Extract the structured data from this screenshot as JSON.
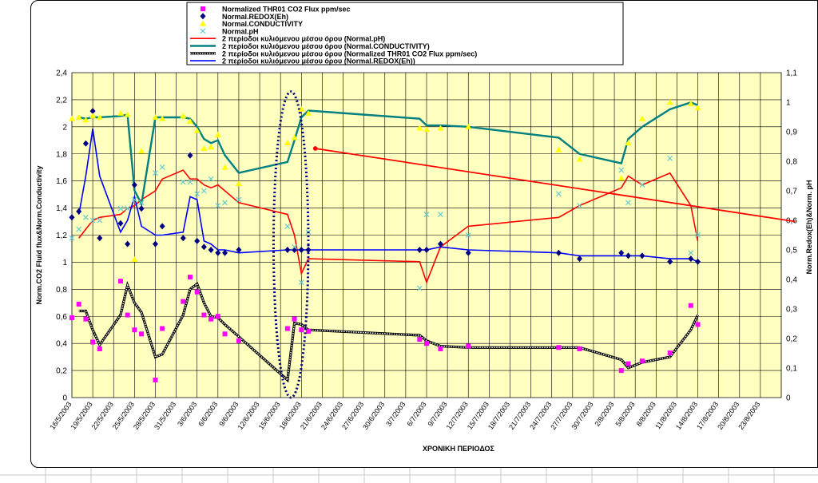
{
  "chart_data": {
    "type": "line",
    "title": "",
    "xlabel": "ΧΡΟΝΙΚΗ ΠΕΡΙΟΔΟΣ",
    "ylabel_left": "Norm.CO2 Fluid flux&Norm.Conductivity",
    "ylabel_right": "Norm.Redox(Eh)&Norm. pH",
    "ylim_left": [
      0,
      2.4
    ],
    "ylim_right": [
      0,
      1.1
    ],
    "yticks_left": [
      "0",
      "0,2",
      "0,4",
      "0,6",
      "0,8",
      "1",
      "1,2",
      "1,4",
      "1,6",
      "1,8",
      "2",
      "2,2",
      "2,4"
    ],
    "yticks_right": [
      "0",
      "0,1",
      "0,2",
      "0,3",
      "0,4",
      "0,5",
      "0,6",
      "0,7",
      "0,8",
      "0,9",
      "1",
      "1,1"
    ],
    "x_range": [
      0,
      102
    ],
    "x_tick_labels": [
      "16/5/2003",
      "19/5/2003",
      "22/5/2003",
      "25/5/2003",
      "28/5/2003",
      "31/5/2003",
      "3/6/2003",
      "6/6/2003",
      "9/6/2003",
      "12/6/2003",
      "15/6/2003",
      "18/6/2003",
      "21/6/2003",
      "24/6/2003",
      "27/6/2003",
      "30/6/2003",
      "3/7/2003",
      "6/7/2003",
      "9/7/2003",
      "12/7/2003",
      "15/7/2003",
      "18/7/2003",
      "21/7/2003",
      "24/7/2003",
      "27/7/2003",
      "30/7/2003",
      "2/8/2003",
      "5/8/2003",
      "8/8/2003",
      "11/8/2003",
      "14/8/2003",
      "17/8/2003",
      "20/8/2003",
      "23/8/2003"
    ],
    "x_tick_step_days": 3,
    "grid": true,
    "plot_background": "#ffffc0",
    "legend_position": "top-center",
    "legend": [
      {
        "label": "Normalized THR01 CO2 Flux  ppm/sec",
        "marker": "square",
        "color": "#ff00ff"
      },
      {
        "label": "Normal.REDOX(Eh)",
        "marker": "diamond",
        "color": "#000080"
      },
      {
        "label": "Normal.CONDUCTIVITY",
        "marker": "triangle",
        "color": "#ffff00"
      },
      {
        "label": "Normal.pH",
        "marker": "x",
        "color": "#66cccc"
      },
      {
        "label": "2 περίοδοι κυλιόμενου μέσου όρου (Normal.pH)",
        "line": "solid",
        "color": "#ff0000"
      },
      {
        "label": "2 περίοδοι κυλιόμενου μέσου όρου (Normal.CONDUCTIVITY)",
        "line": "solid",
        "color": "#008080"
      },
      {
        "label": "2 περίοδοι κυλιόμενου μέσου όρου (Normalized THR01 CO2 Flux  ppm/sec)",
        "line": "beaded",
        "color": "#000000"
      },
      {
        "label": "2 περίοδοι κυλιόμενου μέσου όρου (Normal.REDOX(Eh))",
        "line": "solid",
        "color": "#0000ff"
      }
    ],
    "series": [
      {
        "name": "Normalized THR01 CO2 Flux  ppm/sec",
        "axis": "left",
        "kind": "scatter",
        "marker": "square",
        "color": "#ff00ff",
        "x": [
          0,
          1,
          2,
          3,
          4,
          7,
          8,
          9,
          10,
          12,
          13,
          16,
          17,
          18,
          19,
          20,
          21,
          22,
          24,
          31,
          32,
          33,
          34,
          50,
          51,
          53,
          57,
          70,
          73,
          79,
          80,
          82,
          86,
          89,
          90
        ],
        "y": [
          0.59,
          0.69,
          0.58,
          0.41,
          0.36,
          0.86,
          0.61,
          0.5,
          0.47,
          0.13,
          0.51,
          0.71,
          0.89,
          0.78,
          0.61,
          0.58,
          0.6,
          0.47,
          0.42,
          0.51,
          0.58,
          0.5,
          0.49,
          0.43,
          0.4,
          0.36,
          0.38,
          0.37,
          0.36,
          0.2,
          0.25,
          0.27,
          0.33,
          0.68,
          0.54
        ]
      },
      {
        "name": "Normal.REDOX(Eh)",
        "axis": "right",
        "kind": "scatter",
        "marker": "diamond",
        "color": "#000080",
        "x": [
          0,
          1,
          2,
          3,
          4,
          7,
          8,
          9,
          10,
          12,
          13,
          16,
          17,
          18,
          19,
          20,
          21,
          22,
          24,
          31,
          32,
          33,
          34,
          50,
          51,
          53,
          57,
          70,
          73,
          79,
          80,
          82,
          86,
          89,
          90
        ],
        "y": [
          0.61,
          0.63,
          0.86,
          0.97,
          0.54,
          0.59,
          0.52,
          0.72,
          0.64,
          0.52,
          0.58,
          0.54,
          0.82,
          0.53,
          0.51,
          0.5,
          0.49,
          0.49,
          0.5,
          0.5,
          0.5,
          0.5,
          0.5,
          0.5,
          0.5,
          0.52,
          0.49,
          0.49,
          0.47,
          0.49,
          0.48,
          0.48,
          0.46,
          0.47,
          0.46
        ]
      },
      {
        "name": "Normal.CONDUCTIVITY",
        "axis": "left",
        "kind": "scatter",
        "marker": "triangle",
        "color": "#ffff00",
        "x": [
          0,
          1,
          2,
          3,
          4,
          7,
          8,
          9,
          10,
          12,
          13,
          16,
          17,
          18,
          19,
          20,
          21,
          22,
          24,
          31,
          32,
          33,
          34,
          50,
          51,
          53,
          57,
          70,
          73,
          79,
          80,
          82,
          86,
          89,
          90
        ],
        "y": [
          2.06,
          2.07,
          2.05,
          2.08,
          2.07,
          2.1,
          2.09,
          1.02,
          1.82,
          2.07,
          2.06,
          2.08,
          2.04,
          1.97,
          1.84,
          1.85,
          1.94,
          1.7,
          1.58,
          1.88,
          1.92,
          2.13,
          2.1,
          1.99,
          1.98,
          1.99,
          2.0,
          1.83,
          1.76,
          1.62,
          1.88,
          2.06,
          2.18,
          2.17,
          2.14
        ]
      },
      {
        "name": "Normal.pH",
        "axis": "right",
        "kind": "scatter",
        "marker": "x",
        "color": "#66cccc",
        "x": [
          0,
          1,
          2,
          3,
          4,
          7,
          8,
          9,
          10,
          12,
          13,
          16,
          17,
          18,
          19,
          20,
          21,
          22,
          24,
          31,
          32,
          33,
          34,
          50,
          51,
          53,
          57,
          70,
          73,
          79,
          80,
          82,
          86,
          89,
          90
        ],
        "y": [
          0.54,
          0.57,
          0.61,
          0.6,
          0.6,
          0.64,
          0.64,
          0.67,
          0.66,
          0.76,
          0.78,
          0.73,
          0.73,
          0.69,
          0.7,
          0.74,
          0.65,
          0.66,
          0.67,
          0.58,
          0.51,
          0.39,
          0.56,
          0.37,
          0.62,
          0.62,
          0.55,
          0.69,
          0.65,
          0.77,
          0.66,
          0.72,
          0.81,
          0.49,
          0.55
        ]
      },
      {
        "name": "2 περίοδοι κυλιόμενου μέσου όρου (Normal.pH)",
        "axis": "right",
        "kind": "line",
        "color": "#ff0000",
        "x": [
          1,
          2,
          3,
          4,
          7,
          8,
          9,
          10,
          12,
          13,
          16,
          17,
          18,
          19,
          20,
          21,
          22,
          24,
          31,
          32,
          33,
          34,
          50,
          51,
          53,
          57,
          70,
          73,
          79,
          80,
          82,
          86,
          89,
          90
        ],
        "y": [
          0.54,
          0.57,
          0.6,
          0.61,
          0.62,
          0.64,
          0.65,
          0.67,
          0.7,
          0.74,
          0.77,
          0.74,
          0.74,
          0.72,
          0.71,
          0.72,
          0.7,
          0.66,
          0.62,
          0.55,
          0.42,
          0.47,
          0.46,
          0.39,
          0.51,
          0.58,
          0.61,
          0.65,
          0.71,
          0.75,
          0.72,
          0.76,
          0.65,
          0.53
        ]
      },
      {
        "name": "2 περίοδοι κυλιόμενου μέσου όρου (Normal.CONDUCTIVITY)",
        "axis": "left",
        "kind": "line",
        "color": "#008080",
        "x": [
          1,
          2,
          3,
          4,
          7,
          8,
          9,
          10,
          12,
          13,
          16,
          17,
          18,
          19,
          20,
          21,
          22,
          24,
          31,
          32,
          33,
          34,
          50,
          51,
          53,
          57,
          70,
          73,
          79,
          80,
          82,
          86,
          89,
          90
        ],
        "y": [
          2.07,
          2.06,
          2.07,
          2.07,
          2.08,
          2.09,
          1.53,
          1.43,
          2.07,
          2.07,
          2.07,
          2.06,
          2.0,
          1.91,
          1.88,
          1.9,
          1.79,
          1.66,
          1.74,
          1.9,
          2.07,
          2.12,
          2.06,
          2.01,
          2.01,
          2.0,
          1.92,
          1.8,
          1.73,
          1.91,
          2.0,
          2.13,
          2.18,
          2.16
        ]
      },
      {
        "name": "2 περίοδοι κυλιόμενου μέσου όρου (Normalized THR01 CO2 Flux  ppm/sec)",
        "axis": "left",
        "kind": "line",
        "color": "#000000",
        "x": [
          1,
          2,
          3,
          4,
          7,
          8,
          9,
          10,
          12,
          13,
          16,
          17,
          18,
          19,
          20,
          21,
          22,
          24,
          31,
          32,
          33,
          34,
          50,
          51,
          53,
          57,
          70,
          73,
          79,
          80,
          82,
          86,
          89,
          90
        ],
        "y": [
          0.64,
          0.64,
          0.5,
          0.39,
          0.61,
          0.83,
          0.7,
          0.63,
          0.3,
          0.32,
          0.61,
          0.8,
          0.84,
          0.7,
          0.6,
          0.59,
          0.54,
          0.45,
          0.13,
          0.55,
          0.54,
          0.5,
          0.46,
          0.42,
          0.38,
          0.37,
          0.37,
          0.37,
          0.28,
          0.22,
          0.26,
          0.3,
          0.5,
          0.61
        ]
      },
      {
        "name": "2 περίοδοι κυλιόμενου μέσου όρου (Normal.REDOX(Eh))",
        "axis": "right",
        "kind": "line",
        "color": "#0000ff",
        "x": [
          1,
          2,
          3,
          4,
          7,
          8,
          9,
          10,
          12,
          13,
          16,
          17,
          18,
          19,
          20,
          21,
          22,
          24,
          31,
          32,
          33,
          34,
          50,
          51,
          53,
          57,
          70,
          73,
          79,
          80,
          82,
          86,
          89,
          90
        ],
        "y": [
          0.62,
          0.75,
          0.91,
          0.75,
          0.56,
          0.6,
          0.68,
          0.58,
          0.55,
          0.55,
          0.56,
          0.68,
          0.67,
          0.53,
          0.52,
          0.5,
          0.5,
          0.49,
          0.5,
          0.5,
          0.5,
          0.5,
          0.5,
          0.5,
          0.51,
          0.5,
          0.49,
          0.48,
          0.48,
          0.48,
          0.48,
          0.47,
          0.47,
          0.46
        ]
      }
    ],
    "annotations": [
      {
        "type": "dotted-ellipse",
        "color": "#000080",
        "x_center": 31.5,
        "y_center_left": 1.13,
        "x_radius": 2.5,
        "y_radius_left": 1.13
      },
      {
        "type": "arrow-line",
        "color": "#ff0000",
        "from": {
          "x": 35,
          "y_left": 1.84
        },
        "to": {
          "x": 104,
          "y_left": 1.3
        }
      }
    ]
  }
}
